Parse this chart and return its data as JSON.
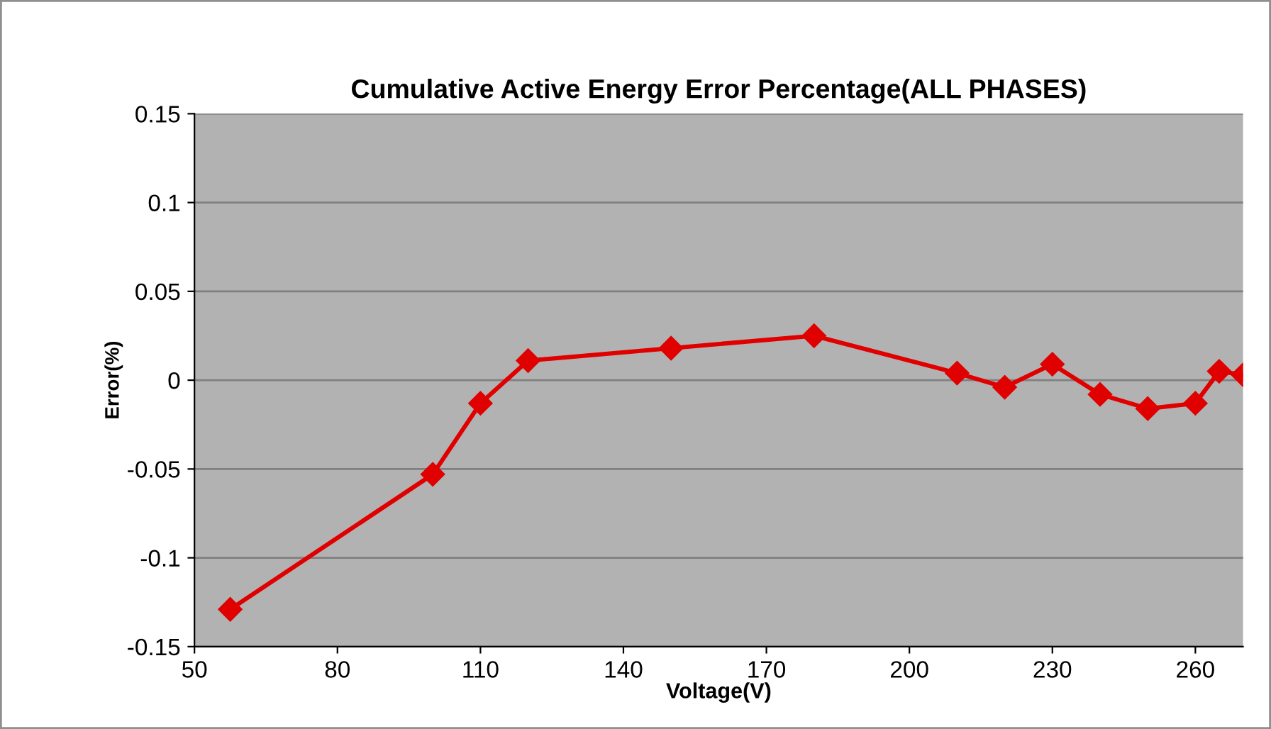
{
  "chart_data": {
    "type": "line",
    "title": "Cumulative Active Energy Error Percentage(ALL PHASES)",
    "xlabel": "Voltage(V)",
    "ylabel": "Error(%)",
    "x": [
      57.5,
      100,
      110,
      120,
      150,
      180,
      210,
      220,
      230,
      240,
      250,
      260,
      265,
      270
    ],
    "series": [
      {
        "color": "#e00000",
        "values": [
          -0.129,
          -0.053,
          -0.013,
          0.011,
          0.018,
          0.025,
          0.004,
          -0.004,
          0.009,
          -0.008,
          -0.016,
          -0.013,
          0.005,
          0.003
        ]
      }
    ],
    "xlim": [
      50,
      270
    ],
    "xticks": [
      50,
      80,
      110,
      140,
      170,
      200,
      230,
      260
    ],
    "ylim": [
      -0.15,
      0.15
    ],
    "yticks": [
      -0.15,
      -0.1,
      -0.05,
      0,
      0.05,
      0.1,
      0.15
    ],
    "grid": "y",
    "marker": "diamond",
    "line_style": "solid",
    "legend": false
  }
}
